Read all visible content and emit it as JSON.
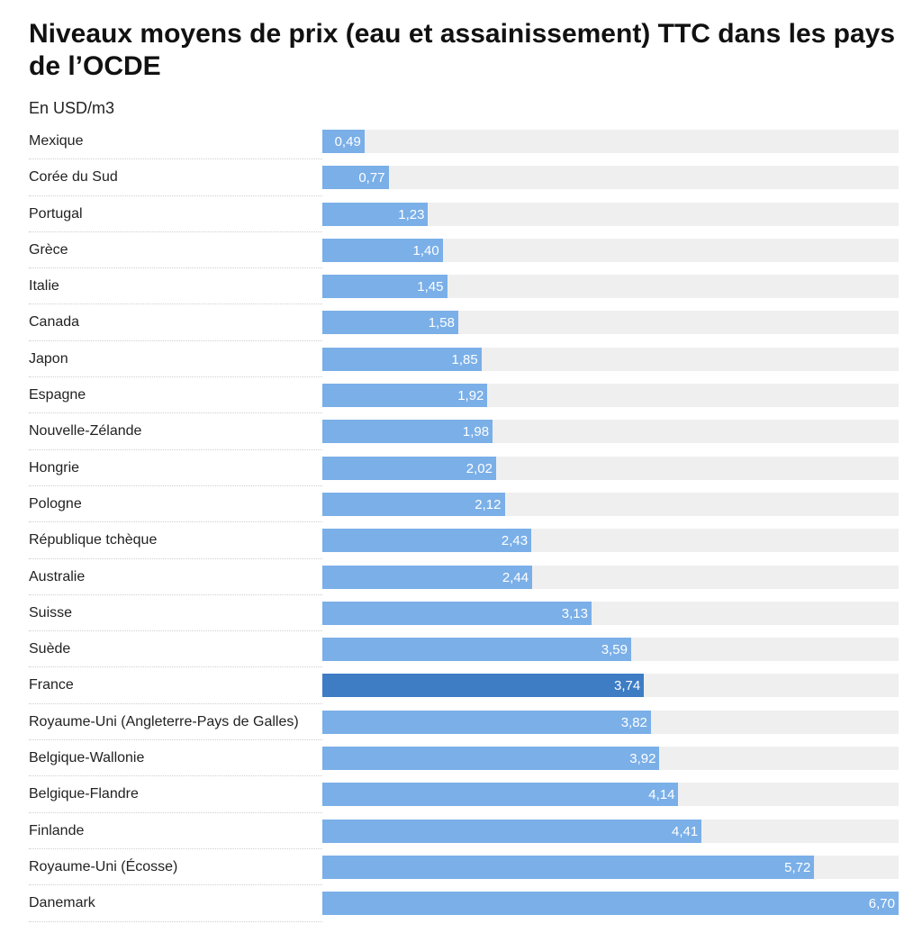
{
  "chart_data": {
    "type": "bar",
    "orientation": "horizontal",
    "title": "Niveaux moyens de prix (eau et assainissement) TTC dans les pays de l’OCDE",
    "subtitle": "En USD/m3",
    "xlim": [
      0,
      6.7
    ],
    "grid": false,
    "legend": "none",
    "colors": {
      "bar": "#7aafe8",
      "highlight": "#3e7cc4",
      "track": "#efefef",
      "value_text": "#ffffff"
    },
    "highlight_category": "France",
    "categories": [
      "Mexique",
      "Corée du Sud",
      "Portugal",
      "Grèce",
      "Italie",
      "Canada",
      "Japon",
      "Espagne",
      "Nouvelle-Zélande",
      "Hongrie",
      "Pologne",
      "République tchèque",
      "Australie",
      "Suisse",
      "Suède",
      "France",
      "Royaume-Uni (Angleterre-Pays de Galles)",
      "Belgique-Wallonie",
      "Belgique-Flandre",
      "Finlande",
      "Royaume-Uni (Écosse)",
      "Danemark"
    ],
    "values": [
      0.49,
      0.77,
      1.23,
      1.4,
      1.45,
      1.58,
      1.85,
      1.92,
      1.98,
      2.02,
      2.12,
      2.43,
      2.44,
      3.13,
      3.59,
      3.74,
      3.82,
      3.92,
      4.14,
      4.41,
      5.72,
      6.7
    ],
    "value_labels": [
      "0,49",
      "0,77",
      "1,23",
      "1,40",
      "1,45",
      "1,58",
      "1,85",
      "1,92",
      "1,98",
      "2,02",
      "2,12",
      "2,43",
      "2,44",
      "3,13",
      "3,59",
      "3,74",
      "3,82",
      "3,92",
      "4,14",
      "4,41",
      "5,72",
      "6,70"
    ]
  }
}
